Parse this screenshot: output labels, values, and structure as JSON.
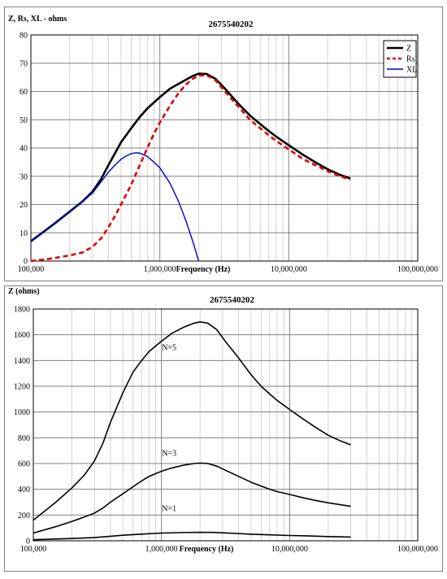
{
  "chart_data": [
    {
      "type": "line",
      "title": "2675540202",
      "ylabel": "Z, Rs, XL - ohms",
      "xlabel": "Frequency (Hz)",
      "xscale": "log",
      "xlim": [
        100000,
        100000000
      ],
      "ylim": [
        0,
        80
      ],
      "yticks": [
        0,
        10,
        20,
        30,
        40,
        50,
        60,
        70,
        80
      ],
      "xticks": [
        {
          "v": 100000,
          "label": "100,000"
        },
        {
          "v": 1000000,
          "label": "1,000,000"
        },
        {
          "v": 10000000,
          "label": "10,000,000"
        },
        {
          "v": 100000000,
          "label": "100,000,000"
        }
      ],
      "grid": true,
      "legend": "top-right",
      "series": [
        {
          "name": "Z",
          "color": "#000000",
          "width": 2.6,
          "dash": "",
          "points": [
            [
              100000,
              7
            ],
            [
              150000,
              13
            ],
            [
              200000,
              17.5
            ],
            [
              250000,
              21
            ],
            [
              300000,
              24.5
            ],
            [
              350000,
              29
            ],
            [
              400000,
              34
            ],
            [
              500000,
              42
            ],
            [
              600000,
              47
            ],
            [
              700000,
              51
            ],
            [
              800000,
              54
            ],
            [
              1000000,
              58
            ],
            [
              1200000,
              61
            ],
            [
              1500000,
              63.5
            ],
            [
              1800000,
              65.5
            ],
            [
              2000000,
              66.3
            ],
            [
              2300000,
              66.2
            ],
            [
              2700000,
              64.5
            ],
            [
              3200000,
              61
            ],
            [
              4000000,
              56
            ],
            [
              5000000,
              51.5
            ],
            [
              6000000,
              48.5
            ],
            [
              7000000,
              46
            ],
            [
              8000000,
              44
            ],
            [
              10000000,
              41
            ],
            [
              13000000,
              37.5
            ],
            [
              16000000,
              35
            ],
            [
              20000000,
              32.5
            ],
            [
              25000000,
              30.5
            ],
            [
              30000000,
              29.2
            ]
          ]
        },
        {
          "name": "Rs",
          "color": "#e00000",
          "width": 2.6,
          "dash": "6,4",
          "points": [
            [
              100000,
              0
            ],
            [
              150000,
              1
            ],
            [
              200000,
              2
            ],
            [
              250000,
              3
            ],
            [
              300000,
              5
            ],
            [
              350000,
              8
            ],
            [
              400000,
              12
            ],
            [
              450000,
              16
            ],
            [
              500000,
              20
            ],
            [
              600000,
              27
            ],
            [
              700000,
              34
            ],
            [
              800000,
              40
            ],
            [
              900000,
              45
            ],
            [
              1000000,
              49
            ],
            [
              1200000,
              55
            ],
            [
              1400000,
              59.5
            ],
            [
              1600000,
              62.5
            ],
            [
              1800000,
              64.5
            ],
            [
              2000000,
              65.6
            ],
            [
              2300000,
              65.8
            ],
            [
              2700000,
              64
            ],
            [
              3200000,
              60
            ],
            [
              4000000,
              55
            ],
            [
              5000000,
              50
            ],
            [
              6000000,
              47
            ],
            [
              7000000,
              44.5
            ],
            [
              8000000,
              42.5
            ],
            [
              10000000,
              39.5
            ],
            [
              13000000,
              36
            ],
            [
              16000000,
              34
            ],
            [
              20000000,
              31.8
            ],
            [
              25000000,
              30
            ],
            [
              30000000,
              28.8
            ]
          ]
        },
        {
          "name": "XL",
          "color": "#0000cc",
          "width": 1.4,
          "dash": "",
          "points": [
            [
              100000,
              7
            ],
            [
              150000,
              13
            ],
            [
              200000,
              17.5
            ],
            [
              250000,
              21
            ],
            [
              300000,
              24
            ],
            [
              350000,
              28
            ],
            [
              400000,
              31.5
            ],
            [
              450000,
              34
            ],
            [
              500000,
              36
            ],
            [
              550000,
              37.2
            ],
            [
              600000,
              38
            ],
            [
              650000,
              38.3
            ],
            [
              700000,
              38.2
            ],
            [
              800000,
              37
            ],
            [
              900000,
              35
            ],
            [
              1000000,
              33
            ],
            [
              1200000,
              27.5
            ],
            [
              1400000,
              21
            ],
            [
              1600000,
              14
            ],
            [
              1800000,
              7
            ],
            [
              2000000,
              0
            ]
          ]
        }
      ]
    },
    {
      "type": "line",
      "title": "2675540202",
      "ylabel": "Z (ohms)",
      "xlabel": "Frequency (Hz)",
      "xscale": "log",
      "xlim": [
        100000,
        100000000
      ],
      "ylim": [
        0,
        1800
      ],
      "yticks": [
        0,
        200,
        400,
        600,
        800,
        1000,
        1200,
        1400,
        1600,
        1800
      ],
      "xticks": [
        {
          "v": 100000,
          "label": "100,000"
        },
        {
          "v": 1000000,
          "label": "1,000,000"
        },
        {
          "v": 10000000,
          "label": "10,000,000"
        },
        {
          "v": 100000000,
          "label": "100,000,000"
        }
      ],
      "grid": true,
      "annotations": [
        {
          "text": "N=5",
          "x": 1150000,
          "y": 1480
        },
        {
          "text": "N=3",
          "x": 1150000,
          "y": 660
        },
        {
          "text": "N=1",
          "x": 1150000,
          "y": 230
        }
      ],
      "series": [
        {
          "name": "N=5",
          "color": "#000000",
          "width": 1.6,
          "dash": "",
          "points": [
            [
              100000,
              160
            ],
            [
              150000,
              300
            ],
            [
              200000,
              410
            ],
            [
              250000,
              510
            ],
            [
              300000,
              620
            ],
            [
              350000,
              760
            ],
            [
              400000,
              920
            ],
            [
              500000,
              1150
            ],
            [
              600000,
              1310
            ],
            [
              700000,
              1400
            ],
            [
              800000,
              1470
            ],
            [
              1000000,
              1550
            ],
            [
              1200000,
              1610
            ],
            [
              1500000,
              1660
            ],
            [
              1800000,
              1690
            ],
            [
              2000000,
              1700
            ],
            [
              2300000,
              1690
            ],
            [
              2700000,
              1640
            ],
            [
              3200000,
              1540
            ],
            [
              4000000,
              1420
            ],
            [
              5000000,
              1290
            ],
            [
              6000000,
              1200
            ],
            [
              7000000,
              1140
            ],
            [
              8000000,
              1090
            ],
            [
              10000000,
              1020
            ],
            [
              13000000,
              940
            ],
            [
              16000000,
              880
            ],
            [
              20000000,
              820
            ],
            [
              25000000,
              775
            ],
            [
              30000000,
              745
            ]
          ]
        },
        {
          "name": "N=3",
          "color": "#000000",
          "width": 1.6,
          "dash": "",
          "points": [
            [
              100000,
              60
            ],
            [
              150000,
              110
            ],
            [
              200000,
              150
            ],
            [
              250000,
              185
            ],
            [
              300000,
              215
            ],
            [
              350000,
              255
            ],
            [
              400000,
              300
            ],
            [
              500000,
              365
            ],
            [
              600000,
              420
            ],
            [
              700000,
              465
            ],
            [
              800000,
              500
            ],
            [
              1000000,
              540
            ],
            [
              1200000,
              565
            ],
            [
              1500000,
              588
            ],
            [
              1800000,
              600
            ],
            [
              2000000,
              604
            ],
            [
              2300000,
              600
            ],
            [
              2700000,
              580
            ],
            [
              3200000,
              545
            ],
            [
              4000000,
              500
            ],
            [
              5000000,
              455
            ],
            [
              6000000,
              425
            ],
            [
              7000000,
              400
            ],
            [
              8000000,
              382
            ],
            [
              10000000,
              360
            ],
            [
              13000000,
              332
            ],
            [
              16000000,
              313
            ],
            [
              20000000,
              295
            ],
            [
              25000000,
              280
            ],
            [
              30000000,
              268
            ]
          ]
        },
        {
          "name": "N=1",
          "color": "#000000",
          "width": 1.6,
          "dash": "",
          "points": [
            [
              100000,
              8
            ],
            [
              150000,
              14
            ],
            [
              200000,
              18
            ],
            [
              300000,
              25
            ],
            [
              400000,
              35
            ],
            [
              500000,
              43
            ],
            [
              700000,
              52
            ],
            [
              1000000,
              60
            ],
            [
              1500000,
              64
            ],
            [
              2000000,
              66
            ],
            [
              2500000,
              65
            ],
            [
              3000000,
              62
            ],
            [
              4000000,
              56
            ],
            [
              5000000,
              51
            ],
            [
              7000000,
              46
            ],
            [
              10000000,
              41
            ],
            [
              15000000,
              37
            ],
            [
              20000000,
              33
            ],
            [
              30000000,
              29
            ]
          ]
        }
      ]
    }
  ]
}
